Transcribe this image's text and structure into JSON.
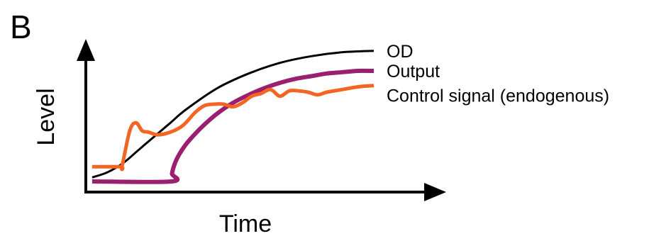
{
  "panel_label": "B",
  "chart_data": {
    "type": "line",
    "xlabel": "Time",
    "ylabel": "Level",
    "xlim": [
      0,
      100
    ],
    "ylim": [
      0,
      100
    ],
    "grid": false,
    "legend": "end-of-line labels",
    "series": [
      {
        "name": "OD",
        "color": "#000000",
        "x": [
          0,
          5,
          10,
          15,
          20,
          25,
          30,
          40,
          50,
          60,
          70,
          80,
          90
        ],
        "y": [
          3,
          7,
          14,
          24,
          34,
          44,
          54,
          70,
          81,
          89,
          94,
          97,
          98
        ]
      },
      {
        "name": "Output",
        "color": "#9a1f6e",
        "x": [
          0,
          25.4,
          25.5,
          26.5,
          28,
          30,
          33,
          36,
          40,
          45,
          50,
          55,
          60,
          65,
          70,
          75,
          80,
          85,
          90
        ],
        "y": [
          0,
          0,
          6,
          14,
          21,
          28,
          36,
          43,
          51,
          59,
          65,
          70,
          74,
          77,
          79,
          81,
          82,
          83,
          83
        ]
      },
      {
        "name": "Control signal (endogenous)",
        "color": "#f26522",
        "x": [
          0,
          9,
          9.5,
          12,
          14,
          16,
          18,
          21,
          25,
          29,
          33,
          36,
          39,
          42,
          45,
          48,
          51,
          54,
          57,
          60,
          63,
          66,
          69,
          72,
          75,
          80,
          85,
          90
        ],
        "y": [
          11,
          11,
          11,
          38,
          44,
          38,
          37,
          35,
          37,
          42,
          52,
          57,
          58,
          58,
          56,
          59,
          64,
          66,
          69,
          64,
          68,
          68,
          67,
          65,
          67,
          69,
          71,
          72
        ]
      }
    ]
  }
}
